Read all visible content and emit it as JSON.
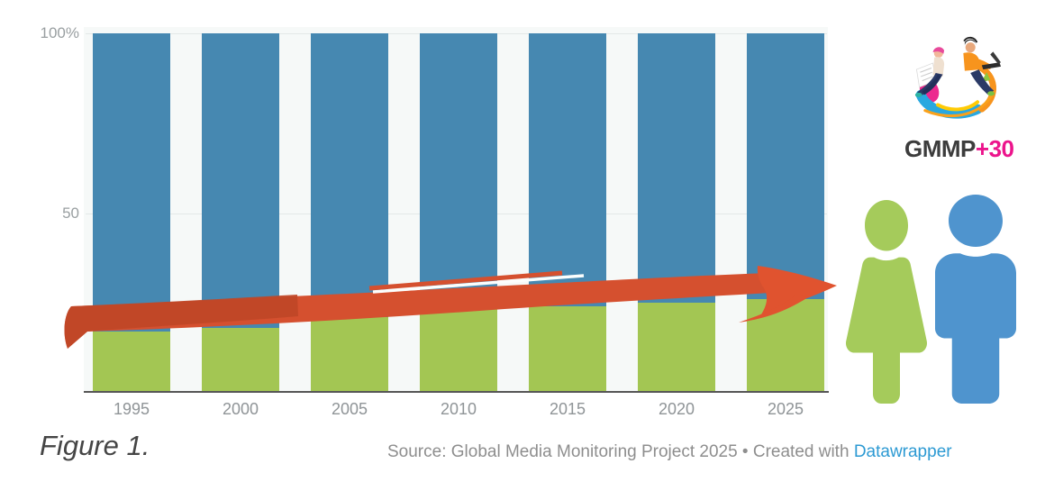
{
  "chart_data": {
    "type": "bar",
    "stacked": true,
    "categories": [
      "1995",
      "2000",
      "2005",
      "2010",
      "2015",
      "2020",
      "2025"
    ],
    "series": [
      {
        "name": "women-share",
        "color": "#a3c653",
        "values": [
          17,
          18,
          21,
          24,
          24,
          25,
          26
        ]
      },
      {
        "name": "men-share",
        "color": "#4688b1",
        "values": [
          83,
          82,
          79,
          76,
          76,
          75,
          74
        ]
      }
    ],
    "ylim": [
      0,
      100
    ],
    "y_ticks": [
      {
        "label": "100%",
        "value": 100
      },
      {
        "label": "50",
        "value": 50
      }
    ],
    "grid": "horizontal",
    "legend": "none",
    "annotation": "hand-drawn red arrow showing slow upward trend of green (women) share"
  },
  "caption": "Figure 1.",
  "footer": {
    "source_prefix": "Source: Global Media Monitoring Project 2025 • Created with ",
    "source_link": "Datawrapper"
  },
  "logo": {
    "title_main": "GMMP",
    "title_suffix": "+30"
  },
  "colors": {
    "arrow_red": "#d5502f",
    "arrow_red_dark": "#bf4727",
    "woman_green": "#a5cb5b",
    "man_blue": "#4f94ce",
    "axis": "#565656",
    "gridline": "#e3e8e7",
    "link_blue": "#2d9ad3"
  }
}
